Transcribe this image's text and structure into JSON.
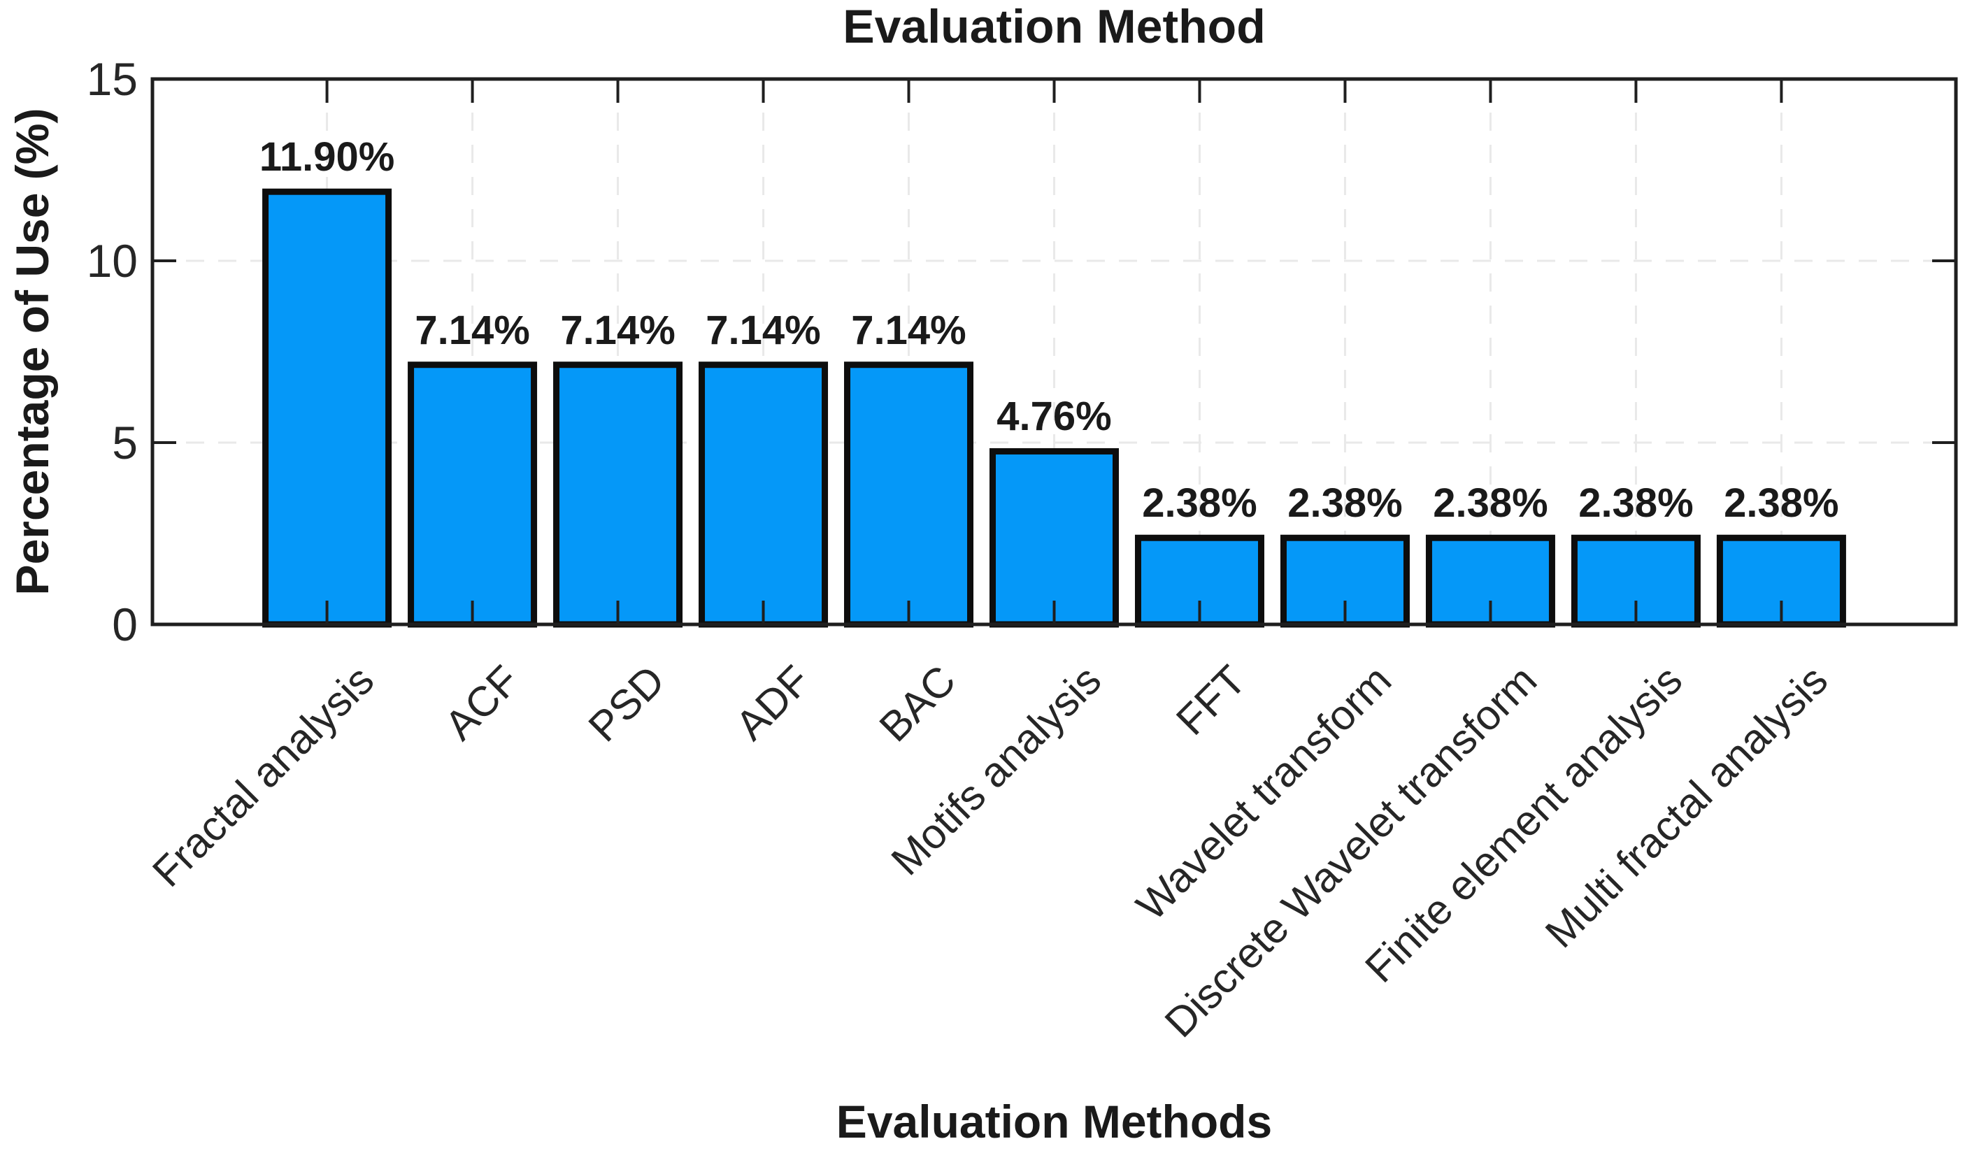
{
  "chart_data": {
    "type": "bar",
    "title": "Evaluation Method",
    "xlabel": "Evaluation Methods",
    "ylabel": "Percentage of Use (%)",
    "categories": [
      "Fractal analysis",
      "ACF",
      "PSD",
      "ADF",
      "BAC",
      "Motifs analysis",
      "FFT",
      "Wavelet transform",
      "Discrete Wavelet transform",
      "Finite element analysis",
      "Multi fractal analysis"
    ],
    "values": [
      11.9,
      7.14,
      7.14,
      7.14,
      7.14,
      4.76,
      2.38,
      2.38,
      2.38,
      2.38,
      2.38
    ],
    "value_labels": [
      "11.90%",
      "7.14%",
      "7.14%",
      "7.14%",
      "7.14%",
      "4.76%",
      "2.38%",
      "2.38%",
      "2.38%",
      "2.38%",
      "2.38%"
    ],
    "yticks": [
      0,
      5,
      10,
      15
    ],
    "ytick_labels": [
      "0",
      "5",
      "10",
      "15"
    ],
    "ylim": [
      0,
      15
    ],
    "xtick_rotation_deg": 45,
    "grid_style": "dashed",
    "legend": "none",
    "colors": {
      "bar_fill": "#0598F8",
      "bar_edge": "#0D0D0D",
      "axis": "#1F1F1F",
      "grid": "#E9E9E9",
      "text": "#1A1A1A",
      "tick_text": "#262626",
      "background": "#FFFFFF"
    }
  }
}
